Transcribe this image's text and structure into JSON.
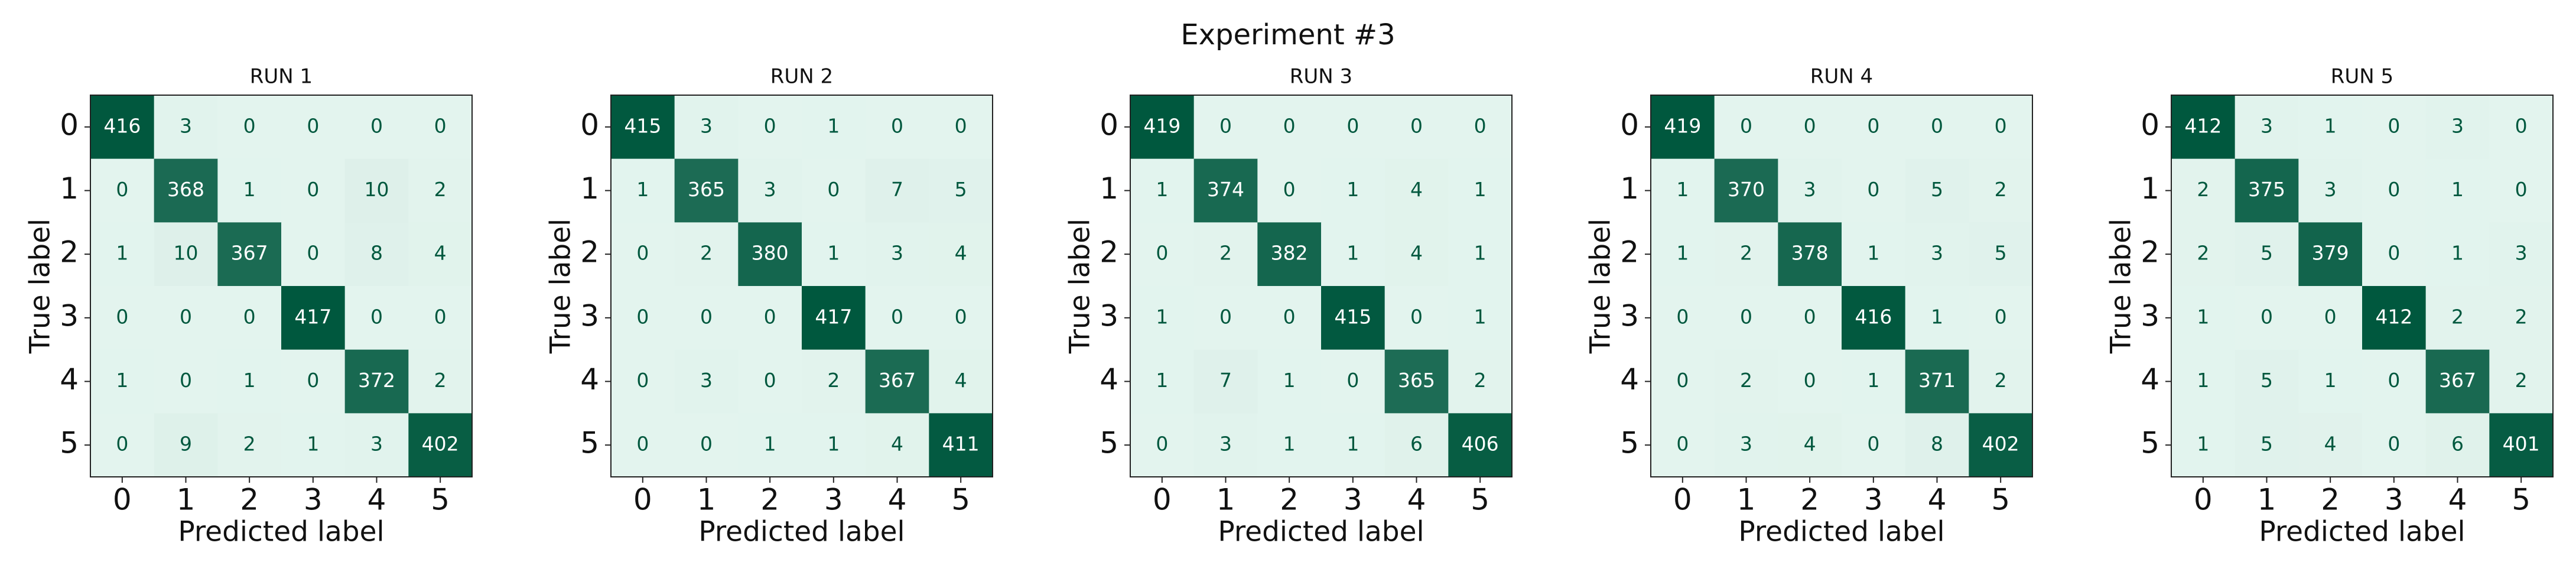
{
  "title": "Experiment #3",
  "chart_data": [
    {
      "type": "heatmap",
      "title": "RUN 1",
      "xlabel": "Predicted label",
      "ylabel": "True label",
      "x_categories": [
        "0",
        "1",
        "2",
        "3",
        "4",
        "5"
      ],
      "y_categories": [
        "0",
        "1",
        "2",
        "3",
        "4",
        "5"
      ],
      "cmap": [
        "#e3f4ee",
        "#00583e"
      ],
      "values": [
        [
          416,
          3,
          0,
          0,
          0,
          0
        ],
        [
          0,
          368,
          1,
          0,
          10,
          2
        ],
        [
          1,
          10,
          367,
          0,
          8,
          4
        ],
        [
          0,
          0,
          0,
          417,
          0,
          0
        ],
        [
          1,
          0,
          1,
          0,
          372,
          2
        ],
        [
          0,
          9,
          2,
          1,
          3,
          402
        ]
      ]
    },
    {
      "type": "heatmap",
      "title": "RUN 2",
      "xlabel": "Predicted label",
      "ylabel": "True label",
      "x_categories": [
        "0",
        "1",
        "2",
        "3",
        "4",
        "5"
      ],
      "y_categories": [
        "0",
        "1",
        "2",
        "3",
        "4",
        "5"
      ],
      "cmap": [
        "#e3f4ee",
        "#00583e"
      ],
      "values": [
        [
          415,
          3,
          0,
          1,
          0,
          0
        ],
        [
          1,
          365,
          3,
          0,
          7,
          5
        ],
        [
          0,
          2,
          380,
          1,
          3,
          4
        ],
        [
          0,
          0,
          0,
          417,
          0,
          0
        ],
        [
          0,
          3,
          0,
          2,
          367,
          4
        ],
        [
          0,
          0,
          1,
          1,
          4,
          411
        ]
      ]
    },
    {
      "type": "heatmap",
      "title": "RUN 3",
      "xlabel": "Predicted label",
      "ylabel": "True label",
      "x_categories": [
        "0",
        "1",
        "2",
        "3",
        "4",
        "5"
      ],
      "y_categories": [
        "0",
        "1",
        "2",
        "3",
        "4",
        "5"
      ],
      "cmap": [
        "#e3f4ee",
        "#00583e"
      ],
      "values": [
        [
          419,
          0,
          0,
          0,
          0,
          0
        ],
        [
          1,
          374,
          0,
          1,
          4,
          1
        ],
        [
          0,
          2,
          382,
          1,
          4,
          1
        ],
        [
          1,
          0,
          0,
          415,
          0,
          1
        ],
        [
          1,
          7,
          1,
          0,
          365,
          2
        ],
        [
          0,
          3,
          1,
          1,
          6,
          406
        ]
      ]
    },
    {
      "type": "heatmap",
      "title": "RUN 4",
      "xlabel": "Predicted label",
      "ylabel": "True label",
      "x_categories": [
        "0",
        "1",
        "2",
        "3",
        "4",
        "5"
      ],
      "y_categories": [
        "0",
        "1",
        "2",
        "3",
        "4",
        "5"
      ],
      "cmap": [
        "#e3f4ee",
        "#00583e"
      ],
      "values": [
        [
          419,
          0,
          0,
          0,
          0,
          0
        ],
        [
          1,
          370,
          3,
          0,
          5,
          2
        ],
        [
          1,
          2,
          378,
          1,
          3,
          5
        ],
        [
          0,
          0,
          0,
          416,
          1,
          0
        ],
        [
          0,
          2,
          0,
          1,
          371,
          2
        ],
        [
          0,
          3,
          4,
          0,
          8,
          402
        ]
      ]
    },
    {
      "type": "heatmap",
      "title": "RUN 5",
      "xlabel": "Predicted label",
      "ylabel": "True label",
      "x_categories": [
        "0",
        "1",
        "2",
        "3",
        "4",
        "5"
      ],
      "y_categories": [
        "0",
        "1",
        "2",
        "3",
        "4",
        "5"
      ],
      "cmap": [
        "#e3f4ee",
        "#00583e"
      ],
      "values": [
        [
          412,
          3,
          1,
          0,
          3,
          0
        ],
        [
          2,
          375,
          3,
          0,
          1,
          0
        ],
        [
          2,
          5,
          379,
          0,
          1,
          3
        ],
        [
          1,
          0,
          0,
          412,
          2,
          2
        ],
        [
          1,
          5,
          1,
          0,
          367,
          2
        ],
        [
          1,
          5,
          4,
          0,
          6,
          401
        ]
      ]
    }
  ]
}
